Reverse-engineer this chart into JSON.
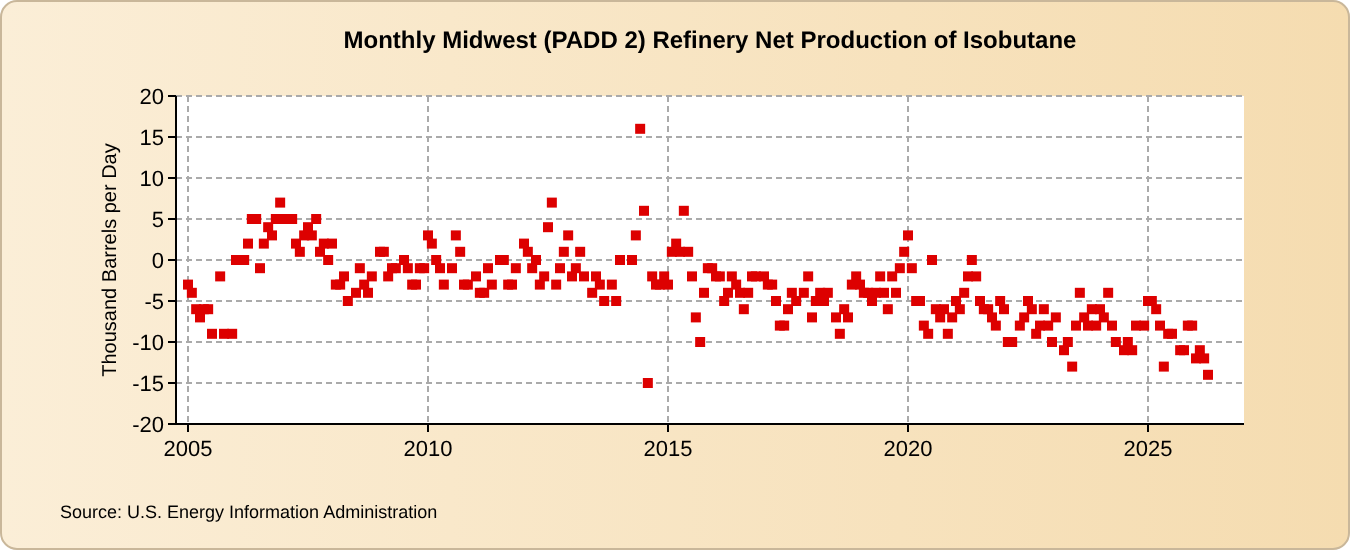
{
  "chart_data": {
    "type": "scatter",
    "title": "Monthly Midwest (PADD 2) Refinery Net Production of Isobutane",
    "ylabel": "Thousand Barrels per Day",
    "annotations": [
      "Source: U.S. Energy Information Administration"
    ],
    "x": [
      2005.0,
      2005.08,
      2005.17,
      2005.25,
      2005.33,
      2005.42,
      2005.5,
      2005.67,
      2005.75,
      2005.92,
      2006.0,
      2006.17,
      2006.25,
      2006.33,
      2006.42,
      2006.5,
      2006.58,
      2006.67,
      2006.75,
      2006.83,
      2006.92,
      2007.0,
      2007.17,
      2007.25,
      2007.33,
      2007.42,
      2007.5,
      2007.58,
      2007.67,
      2007.75,
      2007.83,
      2007.92,
      2008.0,
      2008.08,
      2008.17,
      2008.25,
      2008.33,
      2008.5,
      2008.58,
      2008.67,
      2008.75,
      2008.83,
      2009.0,
      2009.08,
      2009.17,
      2009.25,
      2009.33,
      2009.5,
      2009.58,
      2009.67,
      2009.75,
      2009.83,
      2009.92,
      2010.0,
      2010.08,
      2010.17,
      2010.25,
      2010.33,
      2010.5,
      2010.58,
      2010.67,
      2010.75,
      2010.83,
      2011.0,
      2011.08,
      2011.17,
      2011.25,
      2011.33,
      2011.5,
      2011.58,
      2011.67,
      2011.75,
      2011.83,
      2012.0,
      2012.08,
      2012.17,
      2012.25,
      2012.33,
      2012.42,
      2012.5,
      2012.58,
      2012.67,
      2012.75,
      2012.83,
      2012.92,
      2013.0,
      2013.08,
      2013.17,
      2013.25,
      2013.42,
      2013.5,
      2013.58,
      2013.67,
      2013.83,
      2013.92,
      2014.0,
      2014.25,
      2014.33,
      2014.42,
      2014.5,
      2014.58,
      2014.67,
      2014.75,
      2014.83,
      2014.92,
      2015.0,
      2015.08,
      2015.17,
      2015.25,
      2015.33,
      2015.42,
      2015.5,
      2015.58,
      2015.67,
      2015.75,
      2015.83,
      2015.92,
      2016.0,
      2016.08,
      2016.17,
      2016.25,
      2016.33,
      2016.42,
      2016.5,
      2016.58,
      2016.67,
      2016.75,
      2016.83,
      2017.0,
      2017.08,
      2017.17,
      2017.25,
      2017.33,
      2017.42,
      2017.5,
      2017.58,
      2017.67,
      2017.83,
      2017.92,
      2018.0,
      2018.08,
      2018.17,
      2018.25,
      2018.33,
      2018.5,
      2018.58,
      2018.67,
      2018.75,
      2018.83,
      2018.92,
      2019.0,
      2019.08,
      2019.17,
      2019.25,
      2019.33,
      2019.42,
      2019.5,
      2019.58,
      2019.67,
      2019.75,
      2019.83,
      2019.92,
      2020.0,
      2020.08,
      2020.17,
      2020.25,
      2020.33,
      2020.42,
      2020.5,
      2020.58,
      2020.67,
      2020.75,
      2020.83,
      2020.92,
      2021.0,
      2021.08,
      2021.17,
      2021.25,
      2021.33,
      2021.42,
      2021.5,
      2021.58,
      2021.67,
      2021.75,
      2021.83,
      2021.92,
      2022.0,
      2022.08,
      2022.17,
      2022.33,
      2022.42,
      2022.5,
      2022.58,
      2022.67,
      2022.75,
      2022.83,
      2022.92,
      2023.0,
      2023.08,
      2023.25,
      2023.33,
      2023.42,
      2023.5,
      2023.58,
      2023.67,
      2023.75,
      2023.83,
      2023.92,
      2024.0,
      2024.08,
      2024.17,
      2024.25,
      2024.33,
      2024.5,
      2024.58,
      2024.67,
      2024.75,
      2024.92,
      2025.0,
      2025.08,
      2025.17,
      2025.25,
      2025.33,
      2025.42,
      2025.5,
      2025.67,
      2025.75,
      2025.83,
      2025.92,
      2026.0,
      2026.08,
      2026.17,
      2026.25
    ],
    "series": [
      {
        "color": "#dd0000",
        "values": [
          -3,
          -4,
          -6,
          -7,
          -6,
          -6,
          -9,
          -2,
          -9,
          -9,
          0,
          0,
          2,
          5,
          5,
          -1,
          2,
          4,
          3,
          5,
          7,
          5,
          5,
          2,
          1,
          3,
          4,
          3,
          5,
          1,
          2,
          0,
          2,
          -3,
          -3,
          -2,
          -5,
          -4,
          -1,
          -3,
          -4,
          -2,
          1,
          1,
          -2,
          -1,
          -1,
          0,
          -1,
          -3,
          -3,
          -1,
          -1,
          3,
          2,
          0,
          -1,
          -3,
          -1,
          3,
          1,
          -3,
          -3,
          -2,
          -4,
          -4,
          -1,
          -3,
          0,
          0,
          -3,
          -3,
          -1,
          2,
          1,
          -1,
          0,
          -3,
          -2,
          4,
          7,
          -3,
          -1,
          1,
          3,
          -2,
          -1,
          1,
          -2,
          -4,
          -2,
          -3,
          -5,
          -3,
          -5,
          0,
          0,
          3,
          16,
          6,
          -15,
          -2,
          -3,
          -3,
          -2,
          -3,
          1,
          2,
          1,
          6,
          1,
          -2,
          -7,
          -10,
          -4,
          -1,
          -1,
          -2,
          -2,
          -5,
          -4,
          -2,
          -3,
          -4,
          -6,
          -4,
          -2,
          -2,
          -2,
          -3,
          -3,
          -5,
          -8,
          -8,
          -6,
          -4,
          -5,
          -4,
          -2,
          -7,
          -5,
          -4,
          -5,
          -4,
          -7,
          -9,
          -6,
          -7,
          -3,
          -2,
          -3,
          -4,
          -4,
          -5,
          -4,
          -2,
          -4,
          -6,
          -2,
          -4,
          -1,
          1,
          3,
          -1,
          -5,
          -5,
          -8,
          -9,
          0,
          -6,
          -7,
          -6,
          -9,
          -7,
          -5,
          -6,
          -4,
          -2,
          0,
          -2,
          -5,
          -6,
          -6,
          -7,
          -8,
          -5,
          -6,
          -10,
          -10,
          -8,
          -7,
          -5,
          -6,
          -9,
          -8,
          -6,
          -8,
          -10,
          -7,
          -11,
          -10,
          -13,
          -8,
          -4,
          -7,
          -8,
          -6,
          -8,
          -6,
          -7,
          -4,
          -8,
          -10,
          -11,
          -10,
          -11,
          -8,
          -8,
          -5,
          -5,
          -6,
          -8,
          -13,
          -9,
          -9,
          -11,
          -11,
          -8,
          -8,
          -12,
          -11,
          -12,
          -14
        ]
      }
    ],
    "xlim": [
      2004.75,
      2027
    ],
    "xticks": [
      2005,
      2010,
      2015,
      2020,
      2025
    ],
    "ylim": [
      -20,
      20
    ],
    "yticks": [
      -20,
      -15,
      -10,
      -5,
      0,
      5,
      10,
      15,
      20
    ],
    "grid": true,
    "marker": "square"
  }
}
